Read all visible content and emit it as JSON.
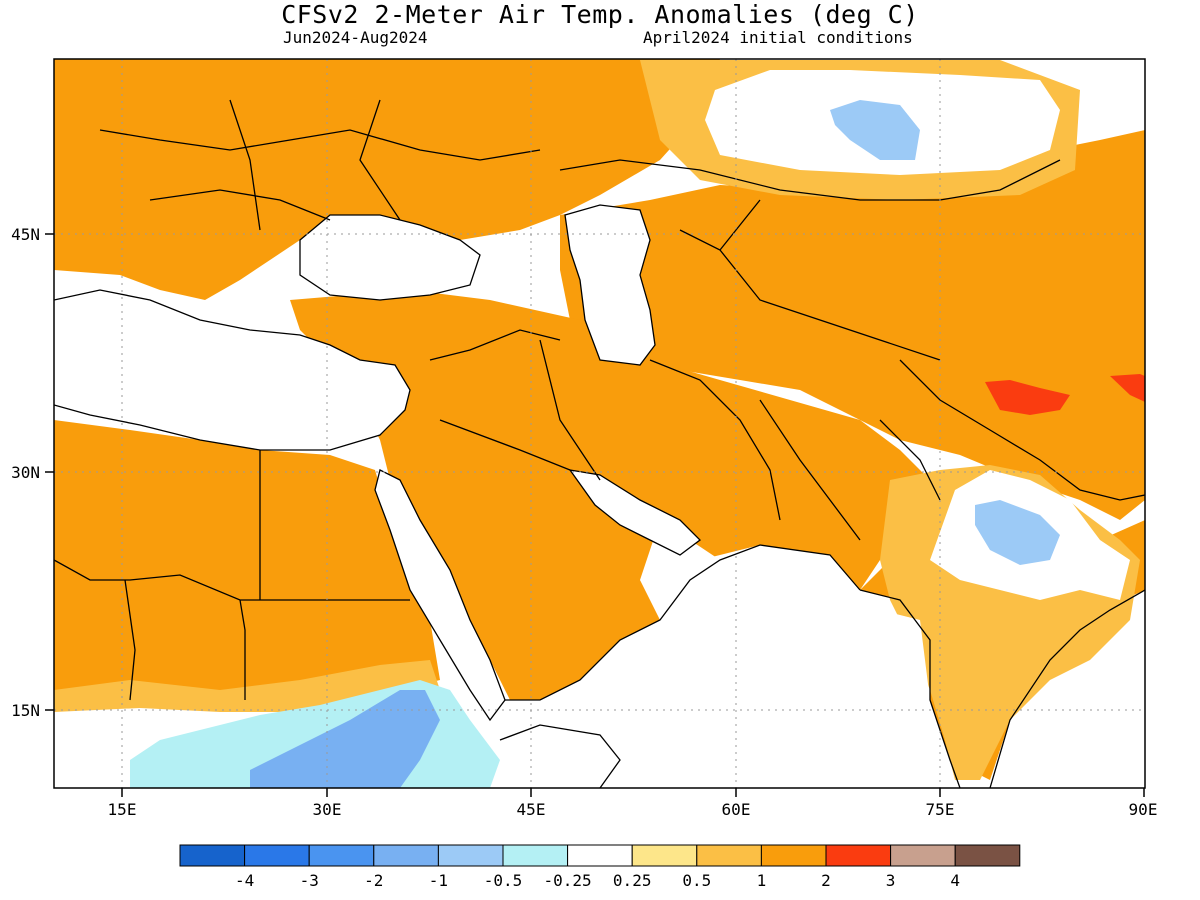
{
  "header": {
    "title": "CFSv2 2-Meter Air Temp. Anomalies (deg C)",
    "period": "Jun2024-Aug2024",
    "conditions": "April2024 initial conditions"
  },
  "axes": {
    "lon_ticks": [
      "15E",
      "30E",
      "45E",
      "60E",
      "75E",
      "90E"
    ],
    "lat_ticks": [
      "45N",
      "30N",
      "15N"
    ]
  },
  "colorbar": {
    "labels": [
      "-4",
      "-3",
      "-2",
      "-1",
      "-0.5",
      "-0.25",
      "0.25",
      "0.5",
      "1",
      "2",
      "3",
      "4"
    ],
    "colors": [
      "#1663cc",
      "#2a78e8",
      "#4a94f0",
      "#78b0f2",
      "#9ccaf6",
      "#b4f0f4",
      "#ffffff",
      "#fde68a",
      "#fbbf45",
      "#f99d0c",
      "#fa3c10",
      "#c8a08e",
      "#7a5244"
    ]
  },
  "palette": {
    "land_anomaly": "#f99d0c",
    "weak_warm": "#fbbf45",
    "slight_warm": "#fde68a",
    "cold_light": "#b4f0f4",
    "cold_mid": "#9ccaf6",
    "cold_strong": "#78b0f2",
    "hot": "#fa3c10"
  }
}
